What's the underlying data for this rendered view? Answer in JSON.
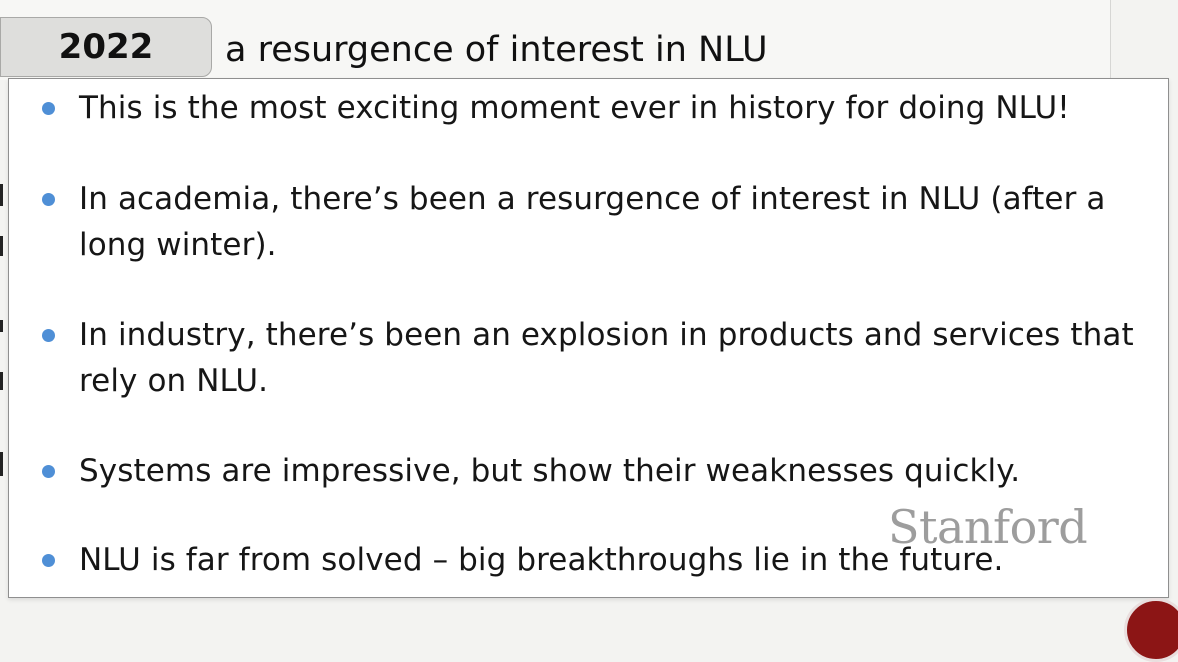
{
  "header": {
    "year_tab": "2022",
    "title": "a resurgence of interest in NLU"
  },
  "slide": {
    "bullets": [
      {
        "text": "This is the most exciting moment ever in history for doing NLU!"
      },
      {
        "text": "In academia, there’s been a resurgence of interest in NLU (after a long winter)."
      },
      {
        "text": "In industry, there’s been an explosion in products and services that rely on NLU."
      },
      {
        "text": "Systems are impressive, but show their weaknesses quickly."
      },
      {
        "text": "NLU is far from solved – big breakthroughs lie in the future."
      }
    ]
  },
  "branding": {
    "watermark": "Stanford",
    "seal_color": "#8c1515"
  },
  "colors": {
    "bullet": "#4f8fd6",
    "tab_background": "#dededc"
  }
}
